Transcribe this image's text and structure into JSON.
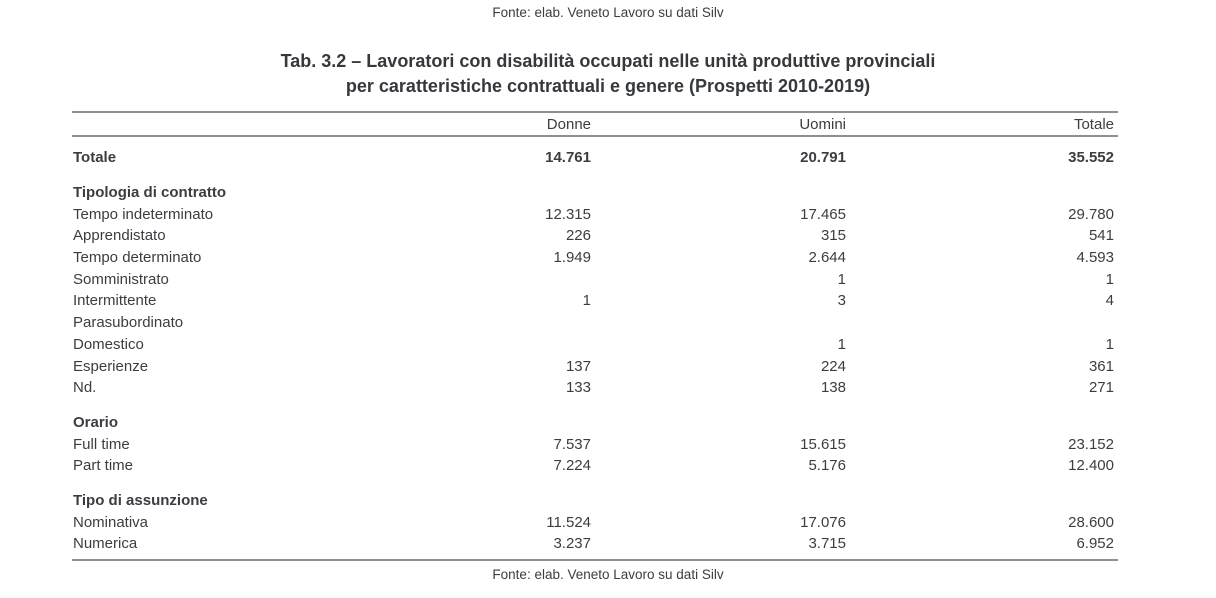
{
  "source_note_top": "Fonte: elab. Veneto Lavoro su dati Silv",
  "source_note_bottom": "Fonte: elab. Veneto Lavoro su dati Silv",
  "title": {
    "line1": "Tab. 3.2 – Lavoratori con disabilità occupati nelle unità produttive provinciali",
    "line2": "per caratteristiche contrattuali e genere (Prospetti 2010-2019)"
  },
  "colors": {
    "text": "#3a3d42",
    "rule": "#8f8f8f"
  },
  "table": {
    "columns": [
      "",
      "Donne",
      "Uomini",
      "Totale"
    ],
    "total_row": {
      "label": "Totale",
      "values": [
        "14.761",
        "20.791",
        "35.552"
      ]
    },
    "sections": [
      {
        "title": "Tipologia di contratto",
        "rows": [
          {
            "label": "Tempo indeterminato",
            "values": [
              "12.315",
              "17.465",
              "29.780"
            ]
          },
          {
            "label": "Apprendistato",
            "values": [
              "226",
              "315",
              "541"
            ]
          },
          {
            "label": "Tempo determinato",
            "values": [
              "1.949",
              "2.644",
              "4.593"
            ]
          },
          {
            "label": "Somministrato",
            "values": [
              "",
              "1",
              "1"
            ]
          },
          {
            "label": "Intermittente",
            "values": [
              "1",
              "3",
              "4"
            ]
          },
          {
            "label": "Parasubordinato",
            "values": [
              "",
              "",
              ""
            ]
          },
          {
            "label": "Domestico",
            "values": [
              "",
              "1",
              "1"
            ]
          },
          {
            "label": "Esperienze",
            "values": [
              "137",
              "224",
              "361"
            ]
          },
          {
            "label": "Nd.",
            "values": [
              "133",
              "138",
              "271"
            ]
          }
        ]
      },
      {
        "title": "Orario",
        "rows": [
          {
            "label": "Full time",
            "values": [
              "7.537",
              "15.615",
              "23.152"
            ]
          },
          {
            "label": "Part time",
            "values": [
              "7.224",
              "5.176",
              "12.400"
            ]
          }
        ]
      },
      {
        "title": "Tipo di assunzione",
        "rows": [
          {
            "label": "Nominativa",
            "values": [
              "11.524",
              "17.076",
              "28.600"
            ]
          },
          {
            "label": "Numerica",
            "values": [
              "3.237",
              "3.715",
              "6.952"
            ]
          }
        ]
      }
    ]
  }
}
